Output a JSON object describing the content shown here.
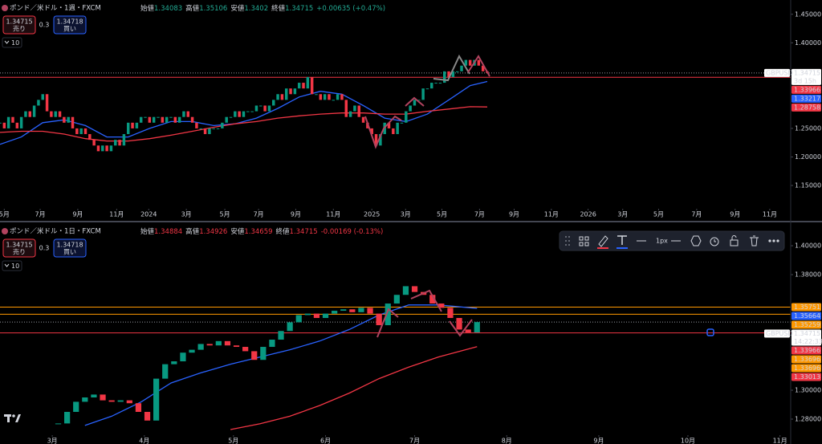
{
  "chart_data": [
    {
      "type": "candlestick",
      "title": "ポンド／米ドル・1週・FXCM",
      "ohlc": [
        {
          "label": "始値",
          "value": 1.34083
        },
        {
          "label": "高値",
          "value": 1.35106
        },
        {
          "label": "安値",
          "value": 1.3402
        },
        {
          "label": "終値",
          "value": 1.34715
        }
      ],
      "change": "+0.00635 (+0.47%)",
      "header_color": "#22ab94",
      "sell": {
        "price": 1.34715,
        "label": "売り"
      },
      "spread": 0.3,
      "buy": {
        "price": 1.34718,
        "label": "買い"
      },
      "indicators_count": 10,
      "up_color": "#089981",
      "down_color": "#f23645",
      "xlim": [
        0,
        185
      ],
      "ylim": [
        1.112,
        1.475
      ],
      "xticks": [
        {
          "value": 1,
          "label": "5月"
        },
        {
          "value": 9.4,
          "label": "7月"
        },
        {
          "value": 18.2,
          "label": "9月"
        },
        {
          "value": 27.3,
          "label": "11月"
        },
        {
          "value": 34.8,
          "label": "2024"
        },
        {
          "value": 43.6,
          "label": "3月"
        },
        {
          "value": 52.6,
          "label": "5月"
        },
        {
          "value": 60.5,
          "label": "7月"
        },
        {
          "value": 69.2,
          "label": "9月"
        },
        {
          "value": 78,
          "label": "11月"
        },
        {
          "value": 87,
          "label": "2025"
        },
        {
          "value": 94.9,
          "label": "3月"
        },
        {
          "value": 103.4,
          "label": "5月"
        },
        {
          "value": 112.2,
          "label": "7月"
        },
        {
          "value": 120.3,
          "label": "9月"
        },
        {
          "value": 129,
          "label": "11月"
        },
        {
          "value": 137.6,
          "label": "2026"
        },
        {
          "value": 145.7,
          "label": "3月"
        },
        {
          "value": 154.1,
          "label": "5月"
        },
        {
          "value": 163,
          "label": "7月"
        },
        {
          "value": 172,
          "label": "9月"
        },
        {
          "value": 180.1,
          "label": "11月"
        }
      ],
      "yticks": [
        {
          "value": 1.45,
          "label": "1.45000"
        },
        {
          "value": 1.4,
          "label": "1.40000"
        },
        {
          "value": 1.25,
          "label": "1.25000"
        },
        {
          "value": 1.2,
          "label": "1.20000"
        },
        {
          "value": 1.15,
          "label": "1.15000"
        }
      ],
      "x": [
        0,
        1,
        2,
        3,
        4,
        5,
        6,
        7,
        8,
        9,
        10,
        11,
        12,
        13,
        14,
        15,
        16,
        17,
        18,
        19,
        20,
        21,
        22,
        23,
        24,
        25,
        26,
        27,
        28,
        29,
        30,
        31,
        32,
        33,
        34,
        35,
        36,
        37,
        38,
        39,
        40,
        41,
        42,
        43,
        44,
        45,
        46,
        47,
        48,
        49,
        50,
        51,
        52,
        53,
        54,
        55,
        56,
        57,
        58,
        59,
        60,
        61,
        62,
        63,
        64,
        65,
        66,
        67,
        68,
        69,
        70,
        71,
        72,
        73,
        74,
        75,
        76,
        77,
        78,
        79,
        80,
        81,
        82,
        83,
        84,
        85,
        86,
        87,
        88,
        89,
        90,
        91,
        92,
        93,
        94,
        95,
        96,
        97,
        98,
        99,
        100,
        101,
        102,
        103,
        104,
        105,
        106,
        107,
        108,
        109,
        110,
        111,
        112,
        113,
        114
      ],
      "close": [
        1.26,
        1.25,
        1.27,
        1.26,
        1.25,
        1.27,
        1.28,
        1.27,
        1.29,
        1.3,
        1.31,
        1.28,
        1.27,
        1.28,
        1.27,
        1.26,
        1.27,
        1.25,
        1.24,
        1.25,
        1.24,
        1.23,
        1.22,
        1.21,
        1.22,
        1.21,
        1.22,
        1.23,
        1.22,
        1.24,
        1.26,
        1.25,
        1.26,
        1.27,
        1.27,
        1.26,
        1.27,
        1.27,
        1.26,
        1.27,
        1.27,
        1.26,
        1.27,
        1.28,
        1.27,
        1.26,
        1.25,
        1.25,
        1.24,
        1.25,
        1.25,
        1.25,
        1.26,
        1.27,
        1.27,
        1.28,
        1.27,
        1.28,
        1.28,
        1.28,
        1.29,
        1.29,
        1.28,
        1.29,
        1.3,
        1.31,
        1.3,
        1.32,
        1.31,
        1.32,
        1.33,
        1.32,
        1.34,
        1.31,
        1.31,
        1.3,
        1.31,
        1.3,
        1.3,
        1.31,
        1.3,
        1.27,
        1.28,
        1.29,
        1.27,
        1.26,
        1.25,
        1.24,
        1.22,
        1.24,
        1.26,
        1.25,
        1.24,
        1.26,
        1.26,
        1.28,
        1.29,
        1.3,
        1.3,
        1.32,
        1.32,
        1.33,
        1.33,
        1.33,
        1.35,
        1.34,
        1.35,
        1.35,
        1.36,
        1.37,
        1.36,
        1.37,
        1.36,
        1.35,
        1.34715
      ],
      "ma_lines": [
        {
          "color": "#2962ff",
          "x": [
            0,
            5,
            10,
            15,
            20,
            25,
            30,
            35,
            40,
            45,
            50,
            55,
            60,
            65,
            70,
            75,
            80,
            85,
            90,
            95,
            100,
            105,
            110,
            114
          ],
          "values": [
            1.222,
            1.235,
            1.26,
            1.265,
            1.255,
            1.235,
            1.235,
            1.25,
            1.262,
            1.262,
            1.255,
            1.258,
            1.268,
            1.285,
            1.305,
            1.315,
            1.31,
            1.29,
            1.268,
            1.262,
            1.275,
            1.3,
            1.325,
            1.33217
          ]
        },
        {
          "color": "#f23645",
          "x": [
            0,
            5,
            10,
            15,
            20,
            25,
            30,
            35,
            40,
            45,
            50,
            55,
            60,
            65,
            70,
            75,
            80,
            85,
            90,
            95,
            100,
            105,
            110,
            114
          ],
          "values": [
            1.243,
            1.245,
            1.245,
            1.24,
            1.232,
            1.228,
            1.228,
            1.232,
            1.238,
            1.245,
            1.252,
            1.258,
            1.262,
            1.268,
            1.272,
            1.275,
            1.277,
            1.277,
            1.275,
            1.275,
            1.28,
            1.284,
            1.288,
            1.28758
          ]
        }
      ],
      "price_lines": [
        {
          "value": 1.34715,
          "color": "#9598a1",
          "style": "dotted"
        },
        {
          "value": 1.33966,
          "color": "#f23645",
          "style": "solid"
        }
      ],
      "tags": [
        {
          "symbol": "GBPUSD",
          "value": 1.34715,
          "countdown": "3d 15h",
          "color": "#ffffff"
        },
        {
          "value": 1.33966,
          "color": "#f23645"
        },
        {
          "value": 1.33217,
          "color": "#2962ff"
        },
        {
          "value": 1.28758,
          "color": "#f23645"
        }
      ]
    },
    {
      "type": "candlestick",
      "title": "ポンド／米ドル・1日・FXCM",
      "ohlc": [
        {
          "label": "始値",
          "value": 1.34884
        },
        {
          "label": "高値",
          "value": 1.34926
        },
        {
          "label": "安値",
          "value": 1.34659
        },
        {
          "label": "終値",
          "value": 1.34715
        }
      ],
      "change": "-0.00169 (-0.13%)",
      "header_color": "#f23645",
      "sell": {
        "price": 1.34715,
        "label": "売り"
      },
      "spread": 0.3,
      "buy": {
        "price": 1.34718,
        "label": "買い"
      },
      "indicators_count": 10,
      "toolbar": {
        "line_width": "1px"
      },
      "up_color": "#089981",
      "down_color": "#f23645",
      "xlim": [
        42.4,
        308.6
      ],
      "ylim": [
        1.27,
        1.4117
      ],
      "xticks": [
        {
          "value": 60,
          "label": "3月"
        },
        {
          "value": 91,
          "label": "4月"
        },
        {
          "value": 121,
          "label": "5月"
        },
        {
          "value": 152,
          "label": "6月"
        },
        {
          "value": 182,
          "label": "7月"
        },
        {
          "value": 213,
          "label": "8月"
        },
        {
          "value": 244,
          "label": "9月"
        },
        {
          "value": 274,
          "label": "10月"
        },
        {
          "value": 305,
          "label": "11月"
        }
      ],
      "yticks": [
        {
          "value": 1.4,
          "label": "1.40000"
        },
        {
          "value": 1.38,
          "label": "1.38000"
        },
        {
          "value": 1.3,
          "label": "1.30000"
        },
        {
          "value": 1.28,
          "label": "1.28000"
        }
      ],
      "x": [
        62,
        65,
        68,
        71,
        74,
        77,
        80,
        83,
        86,
        89,
        92,
        95,
        98,
        101,
        104,
        107,
        110,
        113,
        116,
        119,
        122,
        125,
        128,
        131,
        134,
        137,
        140,
        143,
        146,
        149,
        152,
        155,
        158,
        161,
        164,
        167,
        170,
        173,
        176,
        179,
        182,
        185,
        188,
        191,
        194,
        197,
        200,
        203
      ],
      "close": [
        1.277,
        1.285,
        1.292,
        1.295,
        1.297,
        1.293,
        1.292,
        1.293,
        1.291,
        1.285,
        1.279,
        1.308,
        1.318,
        1.32,
        1.326,
        1.328,
        1.332,
        1.331,
        1.334,
        1.331,
        1.33,
        1.327,
        1.321,
        1.33,
        1.335,
        1.341,
        1.347,
        1.352,
        1.353,
        1.35,
        1.353,
        1.355,
        1.356,
        1.354,
        1.357,
        1.353,
        1.345,
        1.36,
        1.366,
        1.372,
        1.368,
        1.366,
        1.36,
        1.357,
        1.35,
        1.342,
        1.34,
        1.34715
      ],
      "ma_lines": [
        {
          "color": "#2962ff",
          "x": [
            71,
            80,
            90,
            100,
            110,
            120,
            130,
            140,
            150,
            160,
            170,
            180,
            190,
            203
          ],
          "values": [
            1.2756,
            1.282,
            1.292,
            1.305,
            1.312,
            1.318,
            1.323,
            1.328,
            1.334,
            1.342,
            1.352,
            1.359,
            1.359,
            1.35664
          ]
        },
        {
          "color": "#f23645",
          "x": [
            120,
            130,
            140,
            150,
            160,
            170,
            180,
            190,
            203
          ],
          "values": [
            1.2728,
            1.2768,
            1.282,
            1.2894,
            1.298,
            1.308,
            1.316,
            1.323,
            1.33013
          ]
        }
      ],
      "price_lines": [
        {
          "value": 1.35751,
          "color": "#ff9800",
          "style": "solid"
        },
        {
          "value": 1.35259,
          "color": "#ff9800",
          "style": "solid"
        },
        {
          "value": 1.34715,
          "color": "#9598a1",
          "style": "dotted"
        },
        {
          "value": 1.33966,
          "color": "#f23645",
          "style": "solid"
        }
      ],
      "tags": [
        {
          "value": 1.35751,
          "color": "#ff9800"
        },
        {
          "value": 1.35664,
          "color": "#2962ff"
        },
        {
          "value": 1.35259,
          "color": "#ff9800"
        },
        {
          "symbol": "GBPUSD",
          "value": 1.34715,
          "countdown": "14:22:33",
          "color": "#ffffff"
        },
        {
          "value": 1.33966,
          "color": "#f23645"
        },
        {
          "value": 1.33696,
          "color": "#ff9800"
        },
        {
          "value": 1.33696,
          "color": "#ff9800"
        },
        {
          "value": 1.33013,
          "color": "#f23645"
        }
      ]
    }
  ]
}
